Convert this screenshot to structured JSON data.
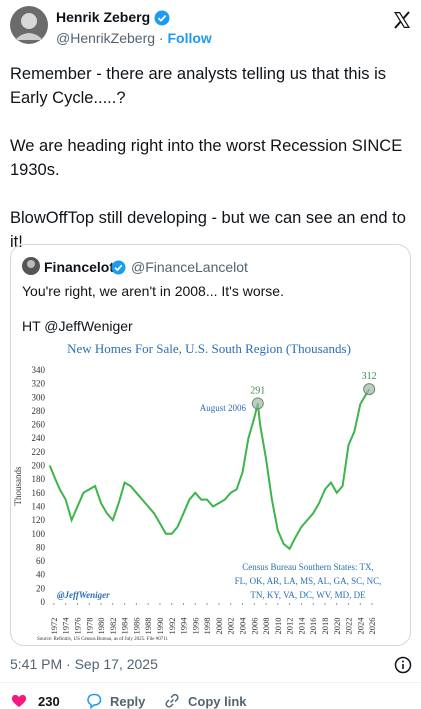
{
  "author": {
    "name": "Henrik Zeberg",
    "handle": "@HenrikZeberg",
    "separator": "·",
    "follow": "Follow"
  },
  "tweet": {
    "paragraphs": [
      "Remember - there are analysts telling us that this is Early Cycle.....?",
      "We are heading right into the worst Recession SINCE 1930s.",
      "BlowOffTop still developing - but we can see an end to it!"
    ]
  },
  "quote": {
    "name": "Financelot",
    "handle": "@FinanceLancelot",
    "text": "You're right, we aren't in 2008... It's worse.",
    "ht": "HT @JeffWeniger"
  },
  "chart_data": {
    "type": "line",
    "title": "New Homes For Sale, U.S. South Region (Thousands)",
    "y_label": "Thousands",
    "x": [
      1971.3,
      1972,
      1973,
      1974,
      1975,
      1976,
      1977,
      1978,
      1979,
      1980,
      1981,
      1982,
      1983,
      1984,
      1985,
      1986,
      1987,
      1988,
      1989,
      1990,
      1991,
      1992,
      1993,
      1994,
      1995,
      1996,
      1997,
      1998,
      1999,
      2000,
      2001,
      2002,
      2003,
      2004,
      2005,
      2006,
      2006.6,
      2007,
      2008,
      2009,
      2010,
      2011,
      2012,
      2013,
      2014,
      2015,
      2016,
      2017,
      2018,
      2019,
      2020,
      2021,
      2022,
      2023,
      2024,
      2025.5
    ],
    "series": [
      {
        "name": "New Homes For Sale",
        "color": "#3cb54a",
        "values": [
          200,
          185,
          165,
          150,
          120,
          140,
          160,
          165,
          170,
          145,
          130,
          120,
          145,
          175,
          170,
          160,
          150,
          140,
          130,
          115,
          100,
          100,
          110,
          130,
          150,
          160,
          150,
          150,
          140,
          145,
          150,
          160,
          165,
          190,
          240,
          270,
          291,
          260,
          210,
          150,
          105,
          85,
          78,
          95,
          110,
          120,
          130,
          145,
          165,
          175,
          160,
          170,
          230,
          250,
          290,
          312
        ],
        "value_labels": [
          null,
          null,
          null,
          null,
          null,
          null,
          null,
          null,
          null,
          null,
          null,
          null,
          null,
          null,
          null,
          null,
          null,
          null,
          null,
          null,
          null,
          null,
          null,
          null,
          null,
          null,
          null,
          null,
          null,
          null,
          null,
          null,
          null,
          null,
          null,
          null,
          "291",
          null,
          null,
          null,
          null,
          null,
          null,
          null,
          null,
          null,
          null,
          null,
          null,
          null,
          null,
          null,
          null,
          null,
          null,
          "312"
        ]
      }
    ],
    "xlim": [
      1971,
      2027
    ],
    "xticks": [
      1972,
      1974,
      1976,
      1978,
      1980,
      1982,
      1984,
      1986,
      1988,
      1990,
      1992,
      1994,
      1996,
      1998,
      2000,
      2002,
      2004,
      2006,
      2008,
      2010,
      2012,
      2014,
      2016,
      2018,
      2020,
      2022,
      2024,
      2026
    ],
    "ylim": [
      0,
      340
    ],
    "yticks": [
      0,
      20,
      40,
      60,
      80,
      100,
      120,
      140,
      160,
      180,
      200,
      220,
      240,
      260,
      280,
      300,
      320,
      340
    ],
    "peak_note": "August 2006",
    "states_note": [
      "Census Bureau Southern States: TX,",
      "FL, OK, AR, LA, MS, AL, GA, SC, NC,",
      "TN, KY, VA, DC, WV, MD, DE"
    ],
    "credit": "@JeffWeniger",
    "source": "Source: Refinitiv, US Census Bureau, as of July 2025. File #0711"
  },
  "footer": {
    "timestamp": "5:41 PM · Sep 17, 2025",
    "likes": "230",
    "reply": "Reply",
    "copy": "Copy link"
  }
}
